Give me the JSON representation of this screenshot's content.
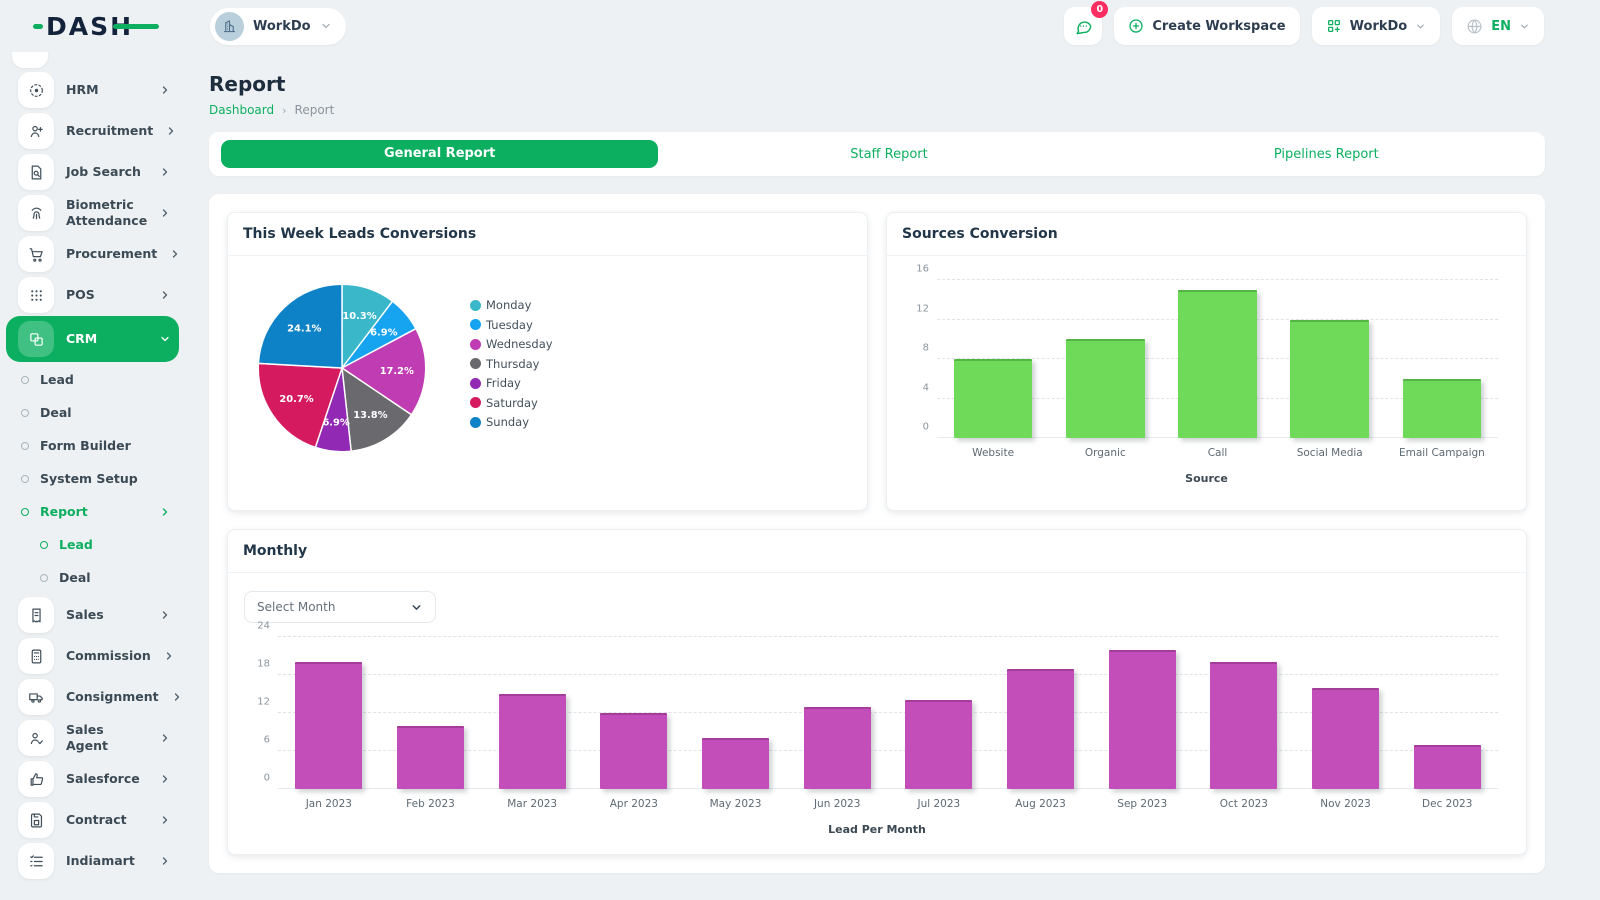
{
  "brand": {
    "logo_text": "DASH"
  },
  "header": {
    "workspace_label": "WorkDo",
    "messages_badge": "0",
    "create_workspace_label": "Create Workspace",
    "workdo_menu_label": "WorkDo",
    "language_label": "EN"
  },
  "sidebar": {
    "items": [
      {
        "label": "HRM",
        "icon": "hrm",
        "chevron": true
      },
      {
        "label": "Recruitment",
        "icon": "recruitment",
        "chevron": true
      },
      {
        "label": "Job Search",
        "icon": "job-search",
        "chevron": true
      },
      {
        "label": "Biometric Attendance",
        "icon": "biometric",
        "chevron": true
      },
      {
        "label": "Procurement",
        "icon": "procurement",
        "chevron": true
      },
      {
        "label": "POS",
        "icon": "pos",
        "chevron": true
      },
      {
        "label": "CRM",
        "icon": "crm",
        "chevron": true,
        "active": true,
        "expanded": true,
        "children": [
          {
            "label": "Lead"
          },
          {
            "label": "Deal"
          },
          {
            "label": "Form Builder"
          },
          {
            "label": "System Setup"
          },
          {
            "label": "Report",
            "green": true,
            "chevron": true,
            "children": [
              {
                "label": "Lead",
                "green": true
              },
              {
                "label": "Deal"
              }
            ]
          }
        ]
      },
      {
        "label": "Sales",
        "icon": "sales",
        "chevron": true
      },
      {
        "label": "Commission",
        "icon": "commission",
        "chevron": true
      },
      {
        "label": "Consignment",
        "icon": "consignment",
        "chevron": true
      },
      {
        "label": "Sales Agent",
        "icon": "sales-agent",
        "chevron": true
      },
      {
        "label": "Salesforce",
        "icon": "salesforce",
        "chevron": true
      },
      {
        "label": "Contract",
        "icon": "contract",
        "chevron": true
      },
      {
        "label": "Indiamart",
        "icon": "indiamart",
        "chevron": true
      }
    ]
  },
  "page": {
    "title": "Report",
    "breadcrumb": {
      "home": "Dashboard",
      "separator": "›",
      "current": "Report"
    }
  },
  "tabs": {
    "items": [
      {
        "label": "General Report",
        "active": true
      },
      {
        "label": "Staff Report"
      },
      {
        "label": "Pipelines Report"
      }
    ]
  },
  "monthly": {
    "select_label": "Select Month"
  },
  "chart_data": [
    {
      "type": "pie",
      "title": "This Week Leads Conversions",
      "labels": [
        "Monday",
        "Tuesday",
        "Wednesday",
        "Thursday",
        "Friday",
        "Saturday",
        "Sunday"
      ],
      "values_pct": [
        10.3,
        6.9,
        17.2,
        13.8,
        6.9,
        20.7,
        24.1
      ],
      "colors": [
        "#3ab7c9",
        "#16a3f0",
        "#c03cb2",
        "#6a6a6e",
        "#9129b4",
        "#d51a5f",
        "#0e82c6"
      ],
      "legend_position": "right"
    },
    {
      "type": "bar",
      "title": "Sources Conversion",
      "categories": [
        "Website",
        "Organic",
        "Call",
        "Social Media",
        "Email Campaign"
      ],
      "values": [
        8,
        10,
        15,
        12,
        6
      ],
      "xlabel": "Source",
      "ylim": [
        0,
        16
      ],
      "yticks": [
        0,
        4,
        8,
        12,
        16
      ],
      "color": "#6fd95a",
      "edge_color": "#55b544",
      "grid": true
    },
    {
      "type": "bar",
      "title": "Monthly",
      "categories": [
        "Jan 2023",
        "Feb 2023",
        "Mar 2023",
        "Apr 2023",
        "May 2023",
        "Jun 2023",
        "Jul 2023",
        "Aug 2023",
        "Sep 2023",
        "Oct 2023",
        "Nov 2023",
        "Dec 2023"
      ],
      "values": [
        20,
        10,
        15,
        12,
        8,
        13,
        14,
        19,
        22,
        20,
        16,
        7
      ],
      "xlabel": "Lead Per Month",
      "ylim": [
        0,
        24
      ],
      "yticks": [
        0,
        6,
        12,
        18,
        24
      ],
      "color": "#c44eb9",
      "edge_color": "#a33d99",
      "grid": true
    }
  ]
}
